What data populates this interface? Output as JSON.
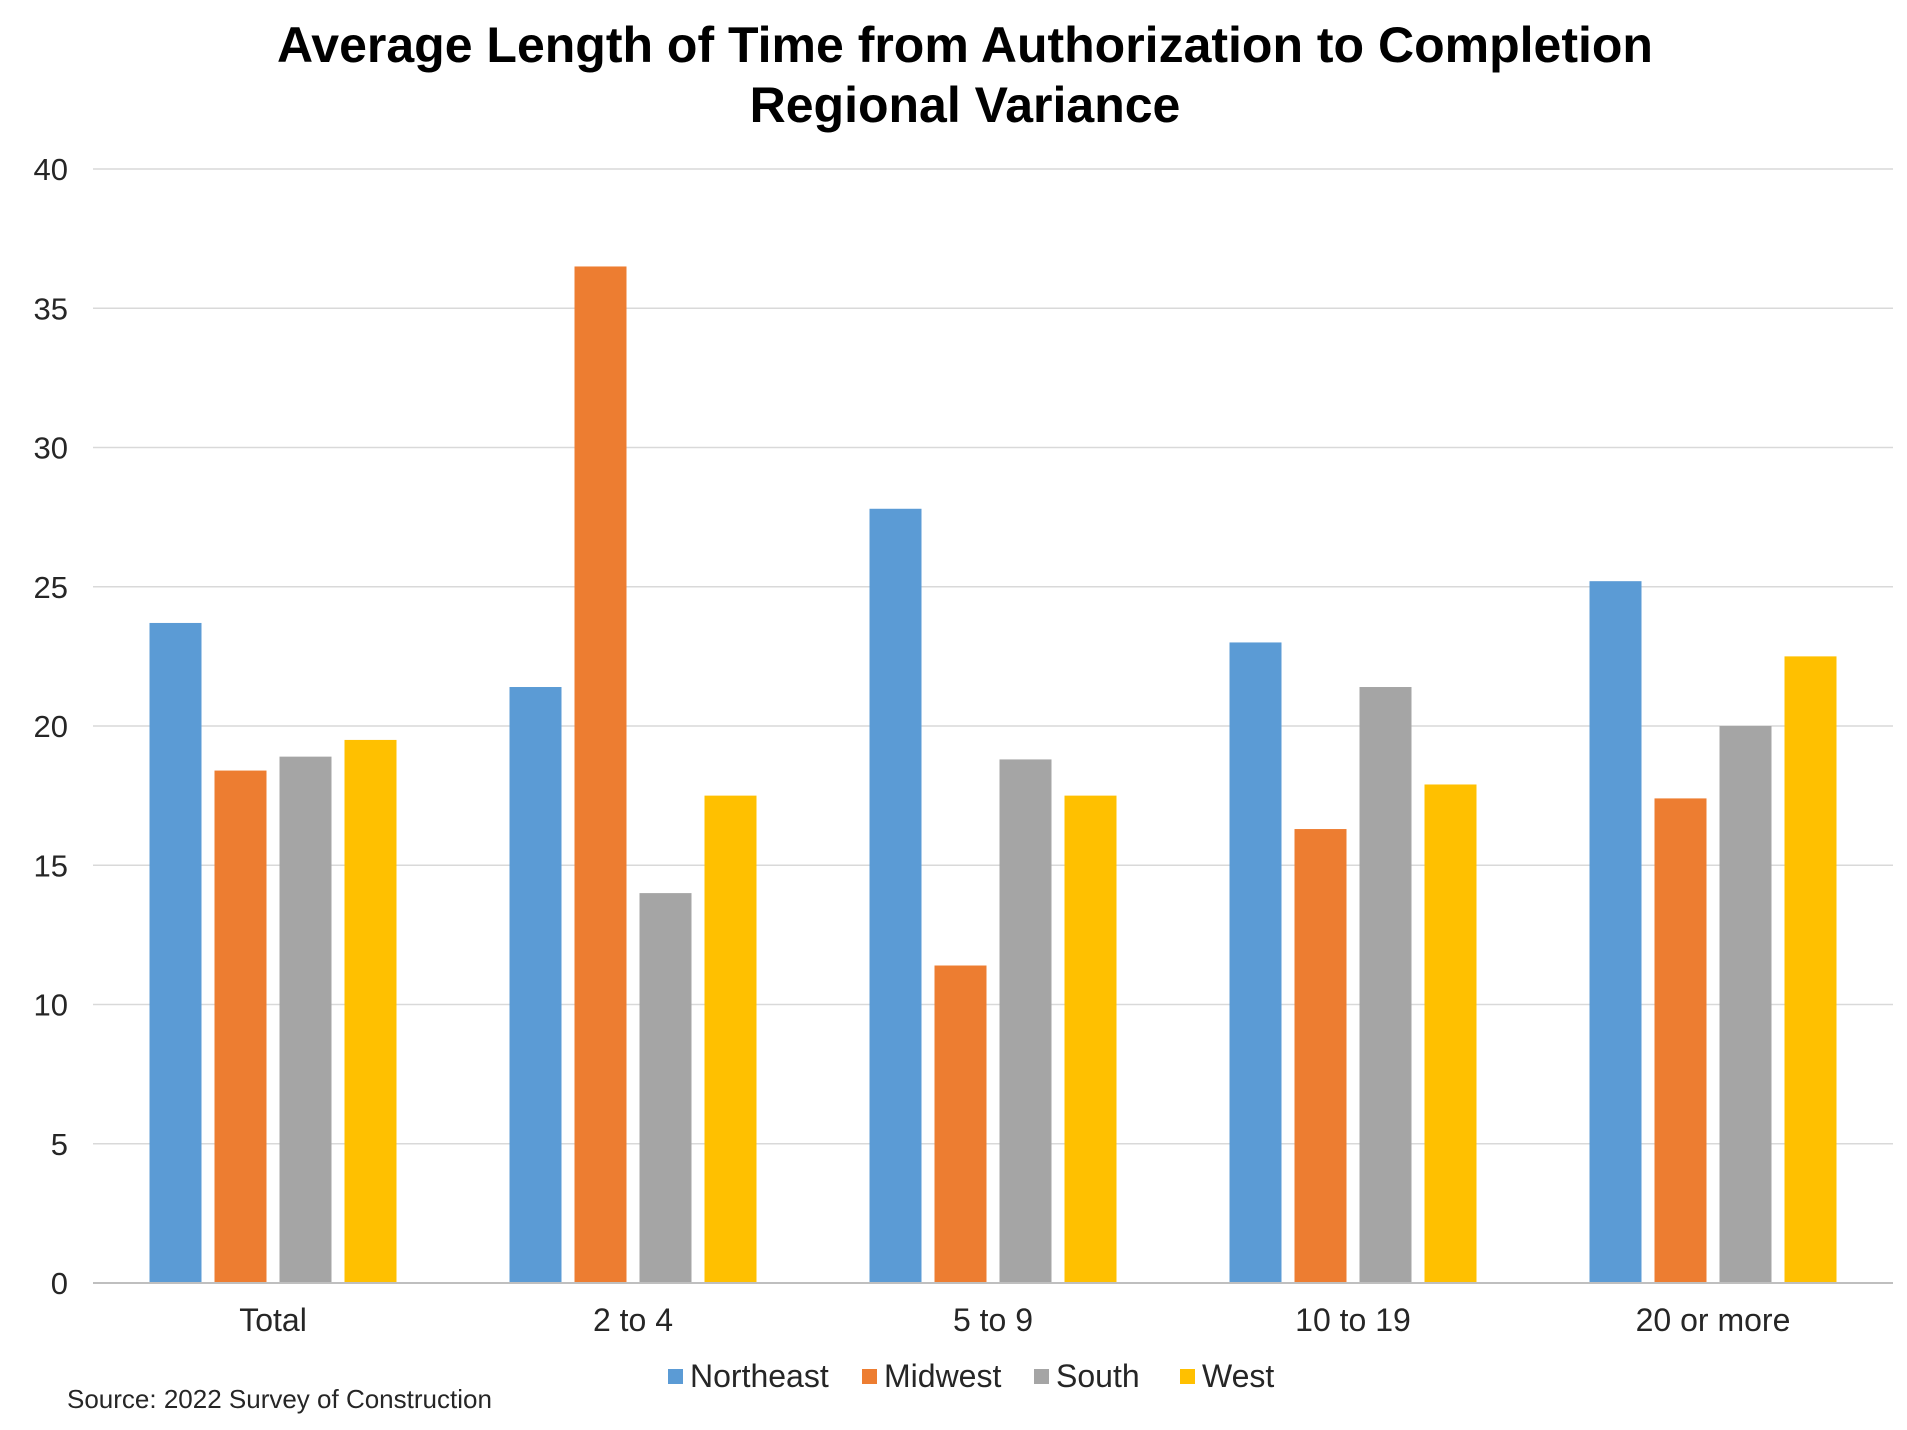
{
  "chart_data": {
    "type": "bar",
    "title_lines": [
      "Average Length of Time from Authorization to Completion",
      "Regional Variance"
    ],
    "categories": [
      "Total",
      "2 to 4",
      "5 to 9",
      "10 to 19",
      "20 or more"
    ],
    "series": [
      {
        "name": "Northeast",
        "color": "#5b9bd5",
        "values": [
          23.7,
          21.4,
          27.8,
          23.0,
          25.2
        ]
      },
      {
        "name": "Midwest",
        "color": "#ed7d31",
        "values": [
          18.4,
          36.5,
          11.4,
          16.3,
          17.4
        ]
      },
      {
        "name": "South",
        "color": "#a5a5a5",
        "values": [
          18.9,
          14.0,
          18.8,
          21.4,
          20.0
        ]
      },
      {
        "name": "West",
        "color": "#ffc000",
        "values": [
          19.5,
          17.5,
          17.5,
          17.9,
          22.5
        ]
      }
    ],
    "y_ticks": [
      0,
      5,
      10,
      15,
      20,
      25,
      30,
      35,
      40
    ],
    "ylim": [
      0,
      40
    ],
    "grid": true,
    "legend_position": "bottom",
    "xlabel": "",
    "ylabel": "",
    "source": "Source: 2022 Survey of Construction"
  }
}
